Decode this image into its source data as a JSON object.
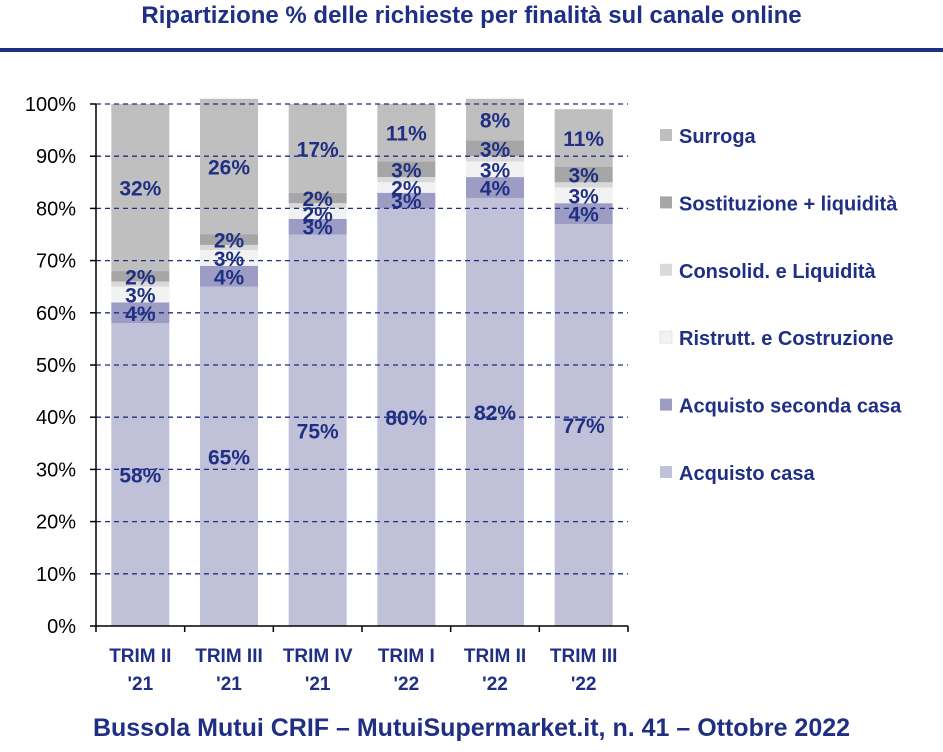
{
  "title": "Ripartizione % delle richieste per finalità sul canale online",
  "footer": "Bussola Mutui CRIF – MutuiSupermarket.it, n. 41 – Ottobre 2022",
  "chart_data": {
    "type": "bar",
    "stacked": true,
    "categories": [
      [
        "TRIM II",
        "'21"
      ],
      [
        "TRIM III",
        "'21"
      ],
      [
        "TRIM IV",
        "'21"
      ],
      [
        "TRIM I",
        "'22"
      ],
      [
        "TRIM II",
        "'22"
      ],
      [
        "TRIM III",
        "'22"
      ]
    ],
    "y_ticks": [
      "0%",
      "10%",
      "20%",
      "30%",
      "40%",
      "50%",
      "60%",
      "70%",
      "80%",
      "90%",
      "100%"
    ],
    "ylim": [
      0,
      100
    ],
    "grid": true,
    "legend_position": "right",
    "series": [
      {
        "name": "Acquisto casa",
        "color": "#c0c0d8",
        "values": [
          58,
          65,
          75,
          80,
          82,
          77
        ],
        "labels": [
          "58%",
          "65%",
          "75%",
          "80%",
          "82%",
          "77%"
        ]
      },
      {
        "name": "Acquisto seconda casa",
        "color": "#9c9cc4",
        "values": [
          4,
          4,
          3,
          3,
          4,
          4
        ],
        "labels": [
          "4%",
          "4%",
          "3%",
          "3%",
          "4%",
          "4%"
        ]
      },
      {
        "name": "Ristrutt. e Costruzione",
        "color": "#f2f2f2",
        "values": [
          3,
          3,
          2,
          2,
          3,
          3
        ],
        "labels": [
          "3%",
          "3%",
          "2%",
          "2%",
          "3%",
          "3%"
        ]
      },
      {
        "name": "Consolid. e Liquidità",
        "color": "#d9d9d9",
        "values": [
          1,
          1,
          1,
          1,
          1,
          1
        ],
        "labels": [
          "",
          "",
          "",
          "",
          "",
          ""
        ]
      },
      {
        "name": "Sostituzione + liquidità",
        "color": "#a6a6a6",
        "values": [
          2,
          2,
          2,
          3,
          3,
          3
        ],
        "labels": [
          "2%",
          "2%",
          "2%",
          "3%",
          "3%",
          "3%"
        ]
      },
      {
        "name": "Surroga",
        "color": "#bfbfbf",
        "values": [
          32,
          26,
          17,
          11,
          8,
          11
        ],
        "labels": [
          "32%",
          "26%",
          "17%",
          "11%",
          "8%",
          "11%"
        ]
      }
    ]
  }
}
